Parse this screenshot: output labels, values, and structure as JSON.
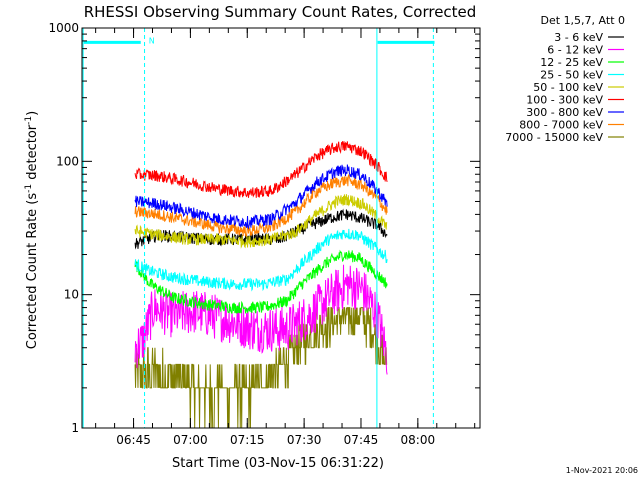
{
  "chart_data": {
    "type": "line",
    "title": "RHESSI Observing Summary Count Rates, Corrected",
    "xlabel": "Start Time (03-Nov-15 06:31:22)",
    "ylabel_main": "Corrected Count Rate (s",
    "ylabel_sup1": "-1",
    "ylabel_mid": " detector",
    "ylabel_sup2": "-1",
    "ylabel_end": ")",
    "y_scale": "log",
    "ylim": [
      1,
      1000
    ],
    "xlim_minutes": [
      0,
      105
    ],
    "x_ticks": [
      {
        "label": "06:45",
        "minute": 13.6
      },
      {
        "label": "07:00",
        "minute": 28.6
      },
      {
        "label": "07:15",
        "minute": 43.6
      },
      {
        "label": "07:30",
        "minute": 58.6
      },
      {
        "label": "07:45",
        "minute": 73.6
      },
      {
        "label": "08:00",
        "minute": 88.6
      }
    ],
    "y_ticks": [
      {
        "label": "1",
        "value": 1
      },
      {
        "label": "10",
        "value": 10
      },
      {
        "label": "100",
        "value": 100
      },
      {
        "label": "1000",
        "value": 1000
      }
    ],
    "legend_header": "Det 1,5,7, Att 0",
    "date_stamp": "1-Nov-2021 20:06",
    "data_start_minute": 14.0,
    "data_end_minute": 80.5,
    "series": [
      {
        "name": "3 - 6 keV",
        "color": "#000000",
        "points": [
          [
            14,
            24
          ],
          [
            20,
            28
          ],
          [
            26,
            27
          ],
          [
            34,
            26
          ],
          [
            44,
            26
          ],
          [
            52,
            26
          ],
          [
            60,
            33
          ],
          [
            66,
            38
          ],
          [
            70,
            40
          ],
          [
            74,
            37
          ],
          [
            78,
            33
          ],
          [
            80.5,
            28
          ]
        ]
      },
      {
        "name": "6 - 12 keV",
        "color": "#ff00ff",
        "points": [
          [
            14,
            4.0
          ],
          [
            16,
            4.5
          ],
          [
            19,
            8.0
          ],
          [
            24,
            7.0
          ],
          [
            30,
            7.5
          ],
          [
            38,
            6.5
          ],
          [
            46,
            5.5
          ],
          [
            54,
            5.5
          ],
          [
            60,
            7
          ],
          [
            66,
            10
          ],
          [
            70,
            12
          ],
          [
            74,
            11
          ],
          [
            78,
            7
          ],
          [
            80.5,
            3.5
          ]
        ]
      },
      {
        "name": "12 - 25 keV",
        "color": "#00ff00",
        "points": [
          [
            14,
            17
          ],
          [
            18,
            12
          ],
          [
            24,
            9.5
          ],
          [
            32,
            8.5
          ],
          [
            40,
            8
          ],
          [
            48,
            8
          ],
          [
            54,
            9
          ],
          [
            58,
            12
          ],
          [
            64,
            17
          ],
          [
            69,
            20
          ],
          [
            73,
            19
          ],
          [
            77,
            15
          ],
          [
            80.5,
            12
          ]
        ]
      },
      {
        "name": "25 - 50 keV",
        "color": "#00ffff",
        "points": [
          [
            14,
            17
          ],
          [
            18,
            15
          ],
          [
            24,
            13.5
          ],
          [
            32,
            12.5
          ],
          [
            40,
            12
          ],
          [
            48,
            12
          ],
          [
            54,
            13
          ],
          [
            58,
            17
          ],
          [
            64,
            25
          ],
          [
            69,
            29
          ],
          [
            73,
            28
          ],
          [
            77,
            23
          ],
          [
            80.5,
            19
          ]
        ]
      },
      {
        "name": "50 - 100 keV",
        "color": "#cccc00",
        "points": [
          [
            14,
            30
          ],
          [
            20,
            28
          ],
          [
            28,
            26
          ],
          [
            36,
            26
          ],
          [
            44,
            25
          ],
          [
            50,
            26
          ],
          [
            56,
            29
          ],
          [
            62,
            40
          ],
          [
            67,
            50
          ],
          [
            70,
            52
          ],
          [
            74,
            48
          ],
          [
            78,
            38
          ],
          [
            80.5,
            32
          ]
        ]
      },
      {
        "name": "100 - 300 keV",
        "color": "#ff0000",
        "points": [
          [
            14,
            80
          ],
          [
            20,
            78
          ],
          [
            28,
            70
          ],
          [
            36,
            62
          ],
          [
            44,
            58
          ],
          [
            50,
            60
          ],
          [
            56,
            78
          ],
          [
            62,
            110
          ],
          [
            67,
            128
          ],
          [
            70,
            130
          ],
          [
            74,
            118
          ],
          [
            78,
            92
          ],
          [
            80.5,
            74
          ]
        ]
      },
      {
        "name": "300 - 800 keV",
        "color": "#0000ff",
        "points": [
          [
            14,
            50
          ],
          [
            20,
            48
          ],
          [
            28,
            42
          ],
          [
            36,
            37
          ],
          [
            44,
            35
          ],
          [
            50,
            37
          ],
          [
            56,
            48
          ],
          [
            62,
            70
          ],
          [
            67,
            84
          ],
          [
            70,
            86
          ],
          [
            74,
            78
          ],
          [
            78,
            60
          ],
          [
            80.5,
            48
          ]
        ]
      },
      {
        "name": "800 - 7000 keV",
        "color": "#ff8000",
        "points": [
          [
            14,
            42
          ],
          [
            20,
            40
          ],
          [
            28,
            36
          ],
          [
            36,
            32
          ],
          [
            44,
            30
          ],
          [
            50,
            32
          ],
          [
            56,
            41
          ],
          [
            62,
            60
          ],
          [
            67,
            70
          ],
          [
            70,
            72
          ],
          [
            74,
            66
          ],
          [
            78,
            52
          ],
          [
            80.5,
            42
          ]
        ]
      },
      {
        "name": "7000 - 15000 keV",
        "color": "#808000",
        "points": [
          [
            14,
            2.6
          ],
          [
            20,
            2.6
          ],
          [
            26,
            2.2
          ],
          [
            30,
            1.9
          ],
          [
            36,
            1.8
          ],
          [
            42,
            1.8
          ],
          [
            48,
            2.1
          ],
          [
            54,
            3.2
          ],
          [
            58,
            4.5
          ],
          [
            64,
            6.0
          ],
          [
            69,
            7.0
          ],
          [
            73,
            7.0
          ],
          [
            77,
            5.2
          ],
          [
            80.5,
            3.0
          ]
        ]
      }
    ],
    "attenuator_bars": [
      {
        "start_minute": 0.5,
        "end_minute": 15.5,
        "value": 780,
        "label": "N"
      },
      {
        "start_minute": 78.0,
        "end_minute": 93.0,
        "value": 780,
        "label": ""
      }
    ],
    "vertical_markers": [
      {
        "minute": 0.3,
        "style": "solid"
      },
      {
        "minute": 16.5,
        "style": "dashed"
      },
      {
        "minute": 77.8,
        "style": "solid"
      },
      {
        "minute": 92.7,
        "style": "dashed"
      }
    ]
  }
}
